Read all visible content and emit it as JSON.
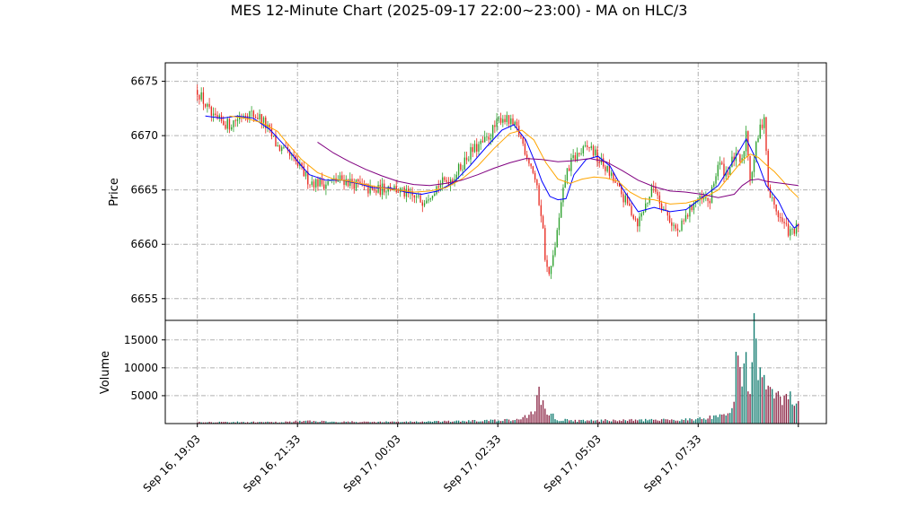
{
  "chart_data": {
    "type": "candlestick",
    "title": "MES 12-Minute Chart (2025-09-17 22:00~23:00) - MA on HLC/3",
    "price_panel": {
      "ylabel": "Price",
      "ylim": [
        6653,
        6676.7
      ],
      "yticks": [
        6655,
        6660,
        6665,
        6670,
        6675
      ],
      "grid": true
    },
    "volume_panel": {
      "ylabel": "Volume",
      "ylim": [
        0,
        18500
      ],
      "yticks": [
        5000,
        10000,
        15000
      ],
      "grid": true
    },
    "xticks": [
      {
        "label": "Sep 16, 19:03",
        "pos": 0
      },
      {
        "label": "Sep 16, 21:33",
        "pos": 12.5
      },
      {
        "label": "Sep 17, 00:03",
        "pos": 25
      },
      {
        "label": "Sep 17, 02:33",
        "pos": 37.5
      },
      {
        "label": "Sep 17, 05:03",
        "pos": 50
      },
      {
        "label": "Sep 17, 07:33",
        "pos": 62.5
      },
      {
        "label": "",
        "pos": 75
      }
    ],
    "xrange": [
      -4,
      78.5
    ],
    "colors": {
      "up": "#2ca02c",
      "down": "#e8291f",
      "vol_up": "#0f7a6e",
      "vol_down": "#8b2545",
      "ma1": "#0000ff",
      "ma2": "#ffa500",
      "ma3": "#800080"
    },
    "close_path": [
      [
        0,
        6674.2
      ],
      [
        2,
        6671.5
      ],
      [
        4,
        6671.0
      ],
      [
        6,
        6672.2
      ],
      [
        8,
        6671.6
      ],
      [
        10,
        6669.0
      ],
      [
        12,
        6667.8
      ],
      [
        14,
        6665.8
      ],
      [
        16,
        6665.6
      ],
      [
        18,
        6666.0
      ],
      [
        20,
        6665.5
      ],
      [
        22,
        6664.8
      ],
      [
        24,
        6665.4
      ],
      [
        26,
        6664.6
      ],
      [
        28,
        6664.0
      ],
      [
        30,
        6665.4
      ],
      [
        32,
        6666.2
      ],
      [
        34,
        6668.4
      ],
      [
        36,
        6669.5
      ],
      [
        38,
        6671.8
      ],
      [
        40,
        6670.5
      ],
      [
        41,
        6668.5
      ],
      [
        42,
        6666.5
      ],
      [
        43,
        6662.5
      ],
      [
        43.5,
        6658.0
      ],
      [
        44,
        6657.0
      ],
      [
        45,
        6661.5
      ],
      [
        46,
        6666.5
      ],
      [
        47,
        6668.0
      ],
      [
        48,
        6668.5
      ],
      [
        49,
        6669.0
      ],
      [
        50,
        6667.8
      ],
      [
        51,
        6667.0
      ],
      [
        53,
        6664.5
      ],
      [
        55,
        6662.0
      ],
      [
        57,
        6665.5
      ],
      [
        58,
        6663.5
      ],
      [
        60,
        6661.0
      ],
      [
        62,
        6664.0
      ],
      [
        64,
        6664.0
      ],
      [
        65,
        6667.5
      ],
      [
        66,
        6666.5
      ],
      [
        67,
        6668.0
      ],
      [
        68,
        6667.5
      ],
      [
        68.5,
        6670.5
      ],
      [
        69,
        6666.0
      ],
      [
        70,
        6670.0
      ],
      [
        70.8,
        6672.0
      ],
      [
        71.2,
        6665.0
      ],
      [
        72,
        6663.5
      ],
      [
        73,
        6662.0
      ],
      [
        74,
        6661.0
      ],
      [
        75,
        6661.5
      ]
    ],
    "volume_path": [
      [
        0,
        300
      ],
      [
        10,
        250
      ],
      [
        13,
        450
      ],
      [
        20,
        300
      ],
      [
        30,
        350
      ],
      [
        37,
        550
      ],
      [
        40,
        650
      ],
      [
        42,
        2000
      ],
      [
        42.5,
        5600
      ],
      [
        43.5,
        2400
      ],
      [
        45,
        700
      ],
      [
        48,
        500
      ],
      [
        52,
        600
      ],
      [
        57,
        600
      ],
      [
        60,
        700
      ],
      [
        63,
        900
      ],
      [
        66,
        1300
      ],
      [
        67,
        3000
      ],
      [
        67.5,
        17800
      ],
      [
        68,
        9800
      ],
      [
        69,
        8800
      ],
      [
        69.5,
        14500
      ],
      [
        70,
        9000
      ],
      [
        71,
        5500
      ],
      [
        72,
        4500
      ],
      [
        73,
        3800
      ],
      [
        74,
        4500
      ],
      [
        75,
        3000
      ]
    ],
    "ma_series": [
      {
        "color": "#0000ff",
        "start": 1,
        "points": [
          [
            1,
            6671.8
          ],
          [
            3,
            6671.6
          ],
          [
            5,
            6671.8
          ],
          [
            7,
            6671.6
          ],
          [
            9,
            6670.6
          ],
          [
            11,
            6669.0
          ],
          [
            13,
            6667.2
          ],
          [
            14,
            6666.4
          ],
          [
            16,
            6665.9
          ],
          [
            18,
            6665.9
          ],
          [
            20,
            6665.6
          ],
          [
            22,
            6665.2
          ],
          [
            24,
            6665.2
          ],
          [
            26,
            6664.8
          ],
          [
            28,
            6664.6
          ],
          [
            30,
            6664.9
          ],
          [
            32,
            6665.7
          ],
          [
            34,
            6667.2
          ],
          [
            36,
            6668.9
          ],
          [
            38,
            6670.5
          ],
          [
            39.5,
            6671.0
          ],
          [
            41,
            6669.6
          ],
          [
            42,
            6667.8
          ],
          [
            43,
            6665.8
          ],
          [
            44,
            6664.4
          ],
          [
            45,
            6664.1
          ],
          [
            46,
            6664.2
          ],
          [
            47,
            6666.4
          ],
          [
            48.5,
            6667.8
          ],
          [
            50,
            6668.1
          ],
          [
            51.5,
            6667.2
          ],
          [
            53,
            6665.2
          ],
          [
            55,
            6663.0
          ],
          [
            57,
            6663.4
          ],
          [
            59,
            6663.0
          ],
          [
            61,
            6663.2
          ],
          [
            63,
            6664.3
          ],
          [
            65,
            6665.4
          ],
          [
            66,
            6666.6
          ],
          [
            67,
            6667.8
          ],
          [
            68.5,
            6669.7
          ],
          [
            70,
            6667.4
          ],
          [
            71,
            6665.4
          ],
          [
            72.5,
            6664.0
          ],
          [
            73.5,
            6662.5
          ],
          [
            74.5,
            6661.5
          ],
          [
            75,
            6661.8
          ]
        ]
      },
      {
        "color": "#ffa500",
        "start": 4,
        "points": [
          [
            4,
            6671.8
          ],
          [
            6,
            6671.6
          ],
          [
            8,
            6671.2
          ],
          [
            10,
            6670.4
          ],
          [
            11,
            6669.5
          ],
          [
            13,
            6667.8
          ],
          [
            15,
            6666.6
          ],
          [
            17,
            6666.0
          ],
          [
            19,
            6665.8
          ],
          [
            21,
            6665.5
          ],
          [
            23,
            6665.2
          ],
          [
            25,
            6665.0
          ],
          [
            27,
            6664.8
          ],
          [
            29,
            6664.9
          ],
          [
            31,
            6665.2
          ],
          [
            33,
            6666.0
          ],
          [
            35,
            6667.2
          ],
          [
            37,
            6668.8
          ],
          [
            39,
            6670.2
          ],
          [
            40.5,
            6670.5
          ],
          [
            42,
            6669.6
          ],
          [
            43.5,
            6667.5
          ],
          [
            45,
            6666.0
          ],
          [
            46.5,
            6665.6
          ],
          [
            48,
            6666.0
          ],
          [
            49.5,
            6666.2
          ],
          [
            51,
            6666.1
          ],
          [
            52.5,
            6665.8
          ],
          [
            54,
            6664.8
          ],
          [
            55.5,
            6664.2
          ],
          [
            57,
            6664.1
          ],
          [
            59,
            6663.7
          ],
          [
            61,
            6663.8
          ],
          [
            63,
            6664.2
          ],
          [
            65,
            6665.0
          ],
          [
            67,
            6666.8
          ],
          [
            68,
            6667.7
          ],
          [
            69,
            6668.3
          ],
          [
            70,
            6668.0
          ],
          [
            71,
            6667.3
          ],
          [
            72,
            6666.7
          ],
          [
            73,
            6665.9
          ],
          [
            74,
            6665.0
          ],
          [
            75,
            6664.3
          ]
        ]
      },
      {
        "color": "#800080",
        "start": 15,
        "points": [
          [
            15,
            6669.4
          ],
          [
            17,
            6668.4
          ],
          [
            19,
            6667.6
          ],
          [
            21,
            6666.9
          ],
          [
            23,
            6666.3
          ],
          [
            25,
            6665.8
          ],
          [
            27,
            6665.5
          ],
          [
            29,
            6665.4
          ],
          [
            31,
            6665.6
          ],
          [
            33,
            6665.9
          ],
          [
            35,
            6666.4
          ],
          [
            37,
            6667.0
          ],
          [
            39,
            6667.5
          ],
          [
            41,
            6667.9
          ],
          [
            43,
            6667.8
          ],
          [
            45,
            6667.6
          ],
          [
            47,
            6667.7
          ],
          [
            49,
            6667.9
          ],
          [
            51,
            6667.6
          ],
          [
            53,
            6666.8
          ],
          [
            55,
            6665.9
          ],
          [
            57,
            6665.3
          ],
          [
            59,
            6664.9
          ],
          [
            61,
            6664.8
          ],
          [
            63,
            6664.6
          ],
          [
            65,
            6664.3
          ],
          [
            67,
            6664.6
          ],
          [
            68,
            6665.4
          ],
          [
            69,
            6665.9
          ],
          [
            70,
            6666.0
          ],
          [
            71,
            6665.8
          ],
          [
            72,
            6665.7
          ],
          [
            73,
            6665.6
          ],
          [
            75,
            6665.4
          ]
        ]
      }
    ]
  }
}
